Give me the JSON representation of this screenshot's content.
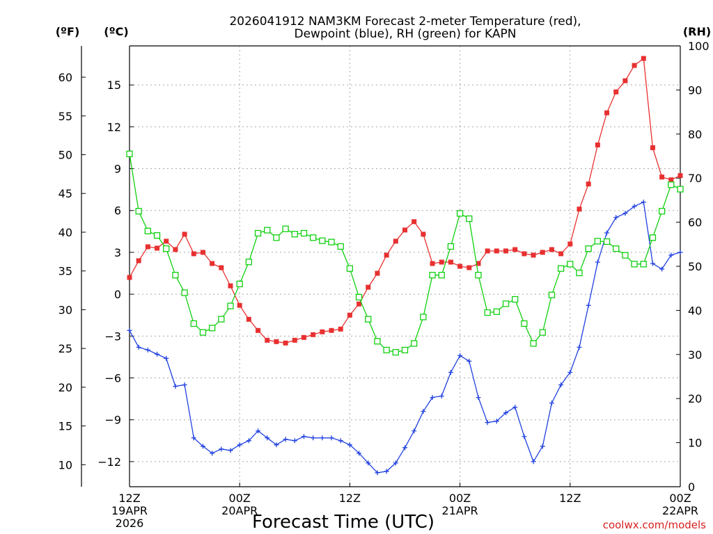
{
  "chart_data": {
    "type": "line",
    "title_lines": [
      "2026041912 NAM3KM Forecast 2-meter Temperature (red),",
      "Dewpoint (blue), RH (green) for KAPN"
    ],
    "xlabel": "Forecast Time (UTC)",
    "credit": "coolwx.com/models",
    "unit_labels": {
      "fahrenheit": "(ºF)",
      "celsius": "(ºC)",
      "rh": "(RH)"
    },
    "x_range_hours": [
      0,
      60
    ],
    "x_ticks": [
      {
        "hour": 0,
        "lines": [
          "12Z",
          "19APR",
          "2026"
        ]
      },
      {
        "hour": 12,
        "lines": [
          "00Z",
          "20APR"
        ]
      },
      {
        "hour": 24,
        "lines": [
          "12Z"
        ]
      },
      {
        "hour": 36,
        "lines": [
          "00Z",
          "21APR"
        ]
      },
      {
        "hour": 48,
        "lines": [
          "12Z"
        ]
      },
      {
        "hour": 60,
        "lines": [
          "00Z",
          "22APR"
        ]
      }
    ],
    "celsius_range": [
      -13.8,
      17.8
    ],
    "celsius_ticks": [
      "15",
      "12",
      "9",
      "6",
      "3",
      "0",
      "−3",
      "−6",
      "−9",
      "−12"
    ],
    "fahrenheit_ticks": [
      "60",
      "55",
      "50",
      "45",
      "40",
      "35",
      "30",
      "25",
      "20",
      "15",
      "10"
    ],
    "rh_range": [
      0,
      100
    ],
    "rh_ticks": [
      "100",
      "90",
      "80",
      "70",
      "60",
      "50",
      "40",
      "30",
      "20",
      "10",
      "0"
    ],
    "grid": true,
    "series": [
      {
        "name": "2-meter Temperature",
        "unit": "C",
        "color": "#e83030",
        "marker": "filled-square",
        "x": [
          0,
          1,
          2,
          3,
          4,
          5,
          6,
          7,
          8,
          9,
          10,
          11,
          12,
          13,
          14,
          15,
          16,
          17,
          18,
          19,
          20,
          21,
          22,
          23,
          24,
          25,
          26,
          27,
          28,
          29,
          30,
          31,
          32,
          33,
          34,
          35,
          36,
          37,
          38,
          39,
          40,
          41,
          42,
          43,
          44,
          45,
          46,
          47,
          48,
          49,
          50,
          51,
          52,
          53,
          54,
          55,
          56,
          57,
          58,
          59,
          60
        ],
        "values": [
          1.2,
          2.4,
          3.4,
          3.3,
          3.8,
          3.2,
          4.3,
          2.9,
          3.0,
          2.2,
          1.9,
          0.6,
          -0.8,
          -1.8,
          -2.6,
          -3.3,
          -3.4,
          -3.5,
          -3.3,
          -3.1,
          -2.9,
          -2.7,
          -2.6,
          -2.5,
          -1.5,
          -0.7,
          0.5,
          1.5,
          2.8,
          3.8,
          4.6,
          5.2,
          4.3,
          2.2,
          2.3,
          2.3,
          2.0,
          1.9,
          2.2,
          3.1,
          3.1,
          3.1,
          3.2,
          2.9,
          2.8,
          3.0,
          3.2,
          2.9,
          3.6,
          6.1,
          7.9,
          10.7,
          13.0,
          14.5,
          15.3,
          16.4,
          16.9,
          10.5,
          8.4,
          8.2,
          8.5
        ]
      },
      {
        "name": "Dewpoint",
        "unit": "C",
        "color": "#2040e0",
        "marker": "plus",
        "x": [
          0,
          1,
          2,
          3,
          4,
          5,
          6,
          7,
          8,
          9,
          10,
          11,
          12,
          13,
          14,
          15,
          16,
          17,
          18,
          19,
          20,
          21,
          22,
          23,
          24,
          25,
          26,
          27,
          28,
          29,
          30,
          31,
          32,
          33,
          34,
          35,
          36,
          37,
          38,
          39,
          40,
          41,
          42,
          43,
          44,
          45,
          46,
          47,
          48,
          49,
          50,
          51,
          52,
          53,
          54,
          55,
          56,
          57,
          58,
          59,
          60
        ],
        "values": [
          -2.6,
          -3.8,
          -4.0,
          -4.3,
          -4.6,
          -6.6,
          -6.5,
          -10.3,
          -10.9,
          -11.4,
          -11.1,
          -11.2,
          -10.8,
          -10.5,
          -9.8,
          -10.3,
          -10.8,
          -10.4,
          -10.5,
          -10.2,
          -10.3,
          -10.3,
          -10.3,
          -10.5,
          -10.8,
          -11.4,
          -12.1,
          -12.8,
          -12.7,
          -12.1,
          -11.0,
          -9.8,
          -8.4,
          -7.4,
          -7.3,
          -5.6,
          -4.4,
          -4.8,
          -7.4,
          -9.2,
          -9.1,
          -8.5,
          -8.1,
          -10.2,
          -12.0,
          -10.9,
          -7.8,
          -6.5,
          -5.6,
          -3.8,
          -0.8,
          2.3,
          4.4,
          5.5,
          5.8,
          6.3,
          6.6,
          2.2,
          1.8,
          2.8,
          3.0
        ]
      },
      {
        "name": "RH",
        "unit": "%",
        "color": "#10d010",
        "marker": "open-square",
        "x": [
          0,
          1,
          2,
          3,
          4,
          5,
          6,
          7,
          8,
          9,
          10,
          11,
          12,
          13,
          14,
          15,
          16,
          17,
          18,
          19,
          20,
          21,
          22,
          23,
          24,
          25,
          26,
          27,
          28,
          29,
          30,
          31,
          32,
          33,
          34,
          35,
          36,
          37,
          38,
          39,
          40,
          41,
          42,
          43,
          44,
          45,
          46,
          47,
          48,
          49,
          50,
          51,
          52,
          53,
          54,
          55,
          56,
          57,
          58,
          59,
          60
        ],
        "values": [
          75.5,
          62.5,
          58,
          57,
          54,
          48,
          44,
          37,
          35,
          36,
          38,
          41,
          46,
          51,
          57.5,
          58.2,
          56.5,
          58.5,
          57.3,
          57.5,
          56.5,
          55.8,
          55.5,
          54.5,
          49.5,
          43,
          38,
          33,
          31,
          30.5,
          31,
          32.5,
          38.5,
          48,
          48,
          54.5,
          62,
          60.8,
          48,
          39.5,
          39.7,
          41.5,
          42.5,
          37,
          32.5,
          35,
          43.5,
          49.5,
          50.5,
          48.5,
          54,
          55.7,
          55.6,
          54,
          52.5,
          50.5,
          50.5,
          56.5,
          62.5,
          68.5,
          67.5
        ]
      }
    ]
  }
}
